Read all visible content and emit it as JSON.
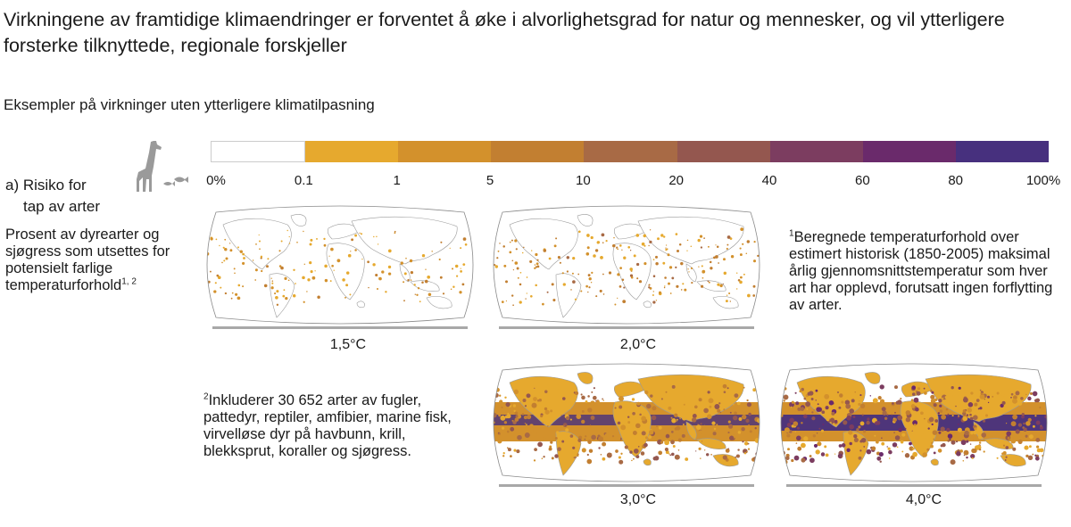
{
  "title": "Virkningene av framtidige klimaendringer er forventet å øke i alvorlighetsgrad for natur og mennesker, og vil ytterligere forsterke tilknyttede, regionale forskjeller",
  "subtitle": "Eksempler på virkninger uten ytterligere klimatilpasning",
  "icon": "giraffe-and-fish-icon",
  "panel": {
    "label_line1": "a) Risiko for",
    "label_line2": "tap av arter",
    "description": "Prosent av dyrearter og sjøgress som utsettes for potensielt farlige temperaturforhold",
    "description_sup": "1, 2"
  },
  "notes": {
    "note1_marker": "1",
    "note1": "Beregnede temperaturforhold over estimert historisk (1850-2005) maksimal årlig gjennomsnittstemperatur som hver art har opplevd, forutsatt ingen forflytting av arter.",
    "note2_marker": "2",
    "note2": "Inkluderer 30 652 arter av fugler, pattedyr, reptiler, amfibier, marine fisk,  virvelløse dyr på havbunn, krill, blekksprut, koraller og sjøgress."
  },
  "chart_data": {
    "type": "heatmap",
    "colorscale": {
      "ticks": [
        "0%",
        "0.1",
        "1",
        "5",
        "10",
        "20",
        "40",
        "60",
        "80",
        "100%"
      ],
      "colors": [
        "#ffffff",
        "#e6a92e",
        "#d3912c",
        "#c27f31",
        "#a86a45",
        "#94574f",
        "#7c3d60",
        "#6a2a6b",
        "#47307e"
      ]
    },
    "maps": [
      {
        "caption": "1,5°C",
        "warming": 1.5
      },
      {
        "caption": "2,0°C",
        "warming": 2.0
      },
      {
        "caption": "3,0°C",
        "warming": 3.0
      },
      {
        "caption": "4,0°C",
        "warming": 4.0
      }
    ]
  }
}
